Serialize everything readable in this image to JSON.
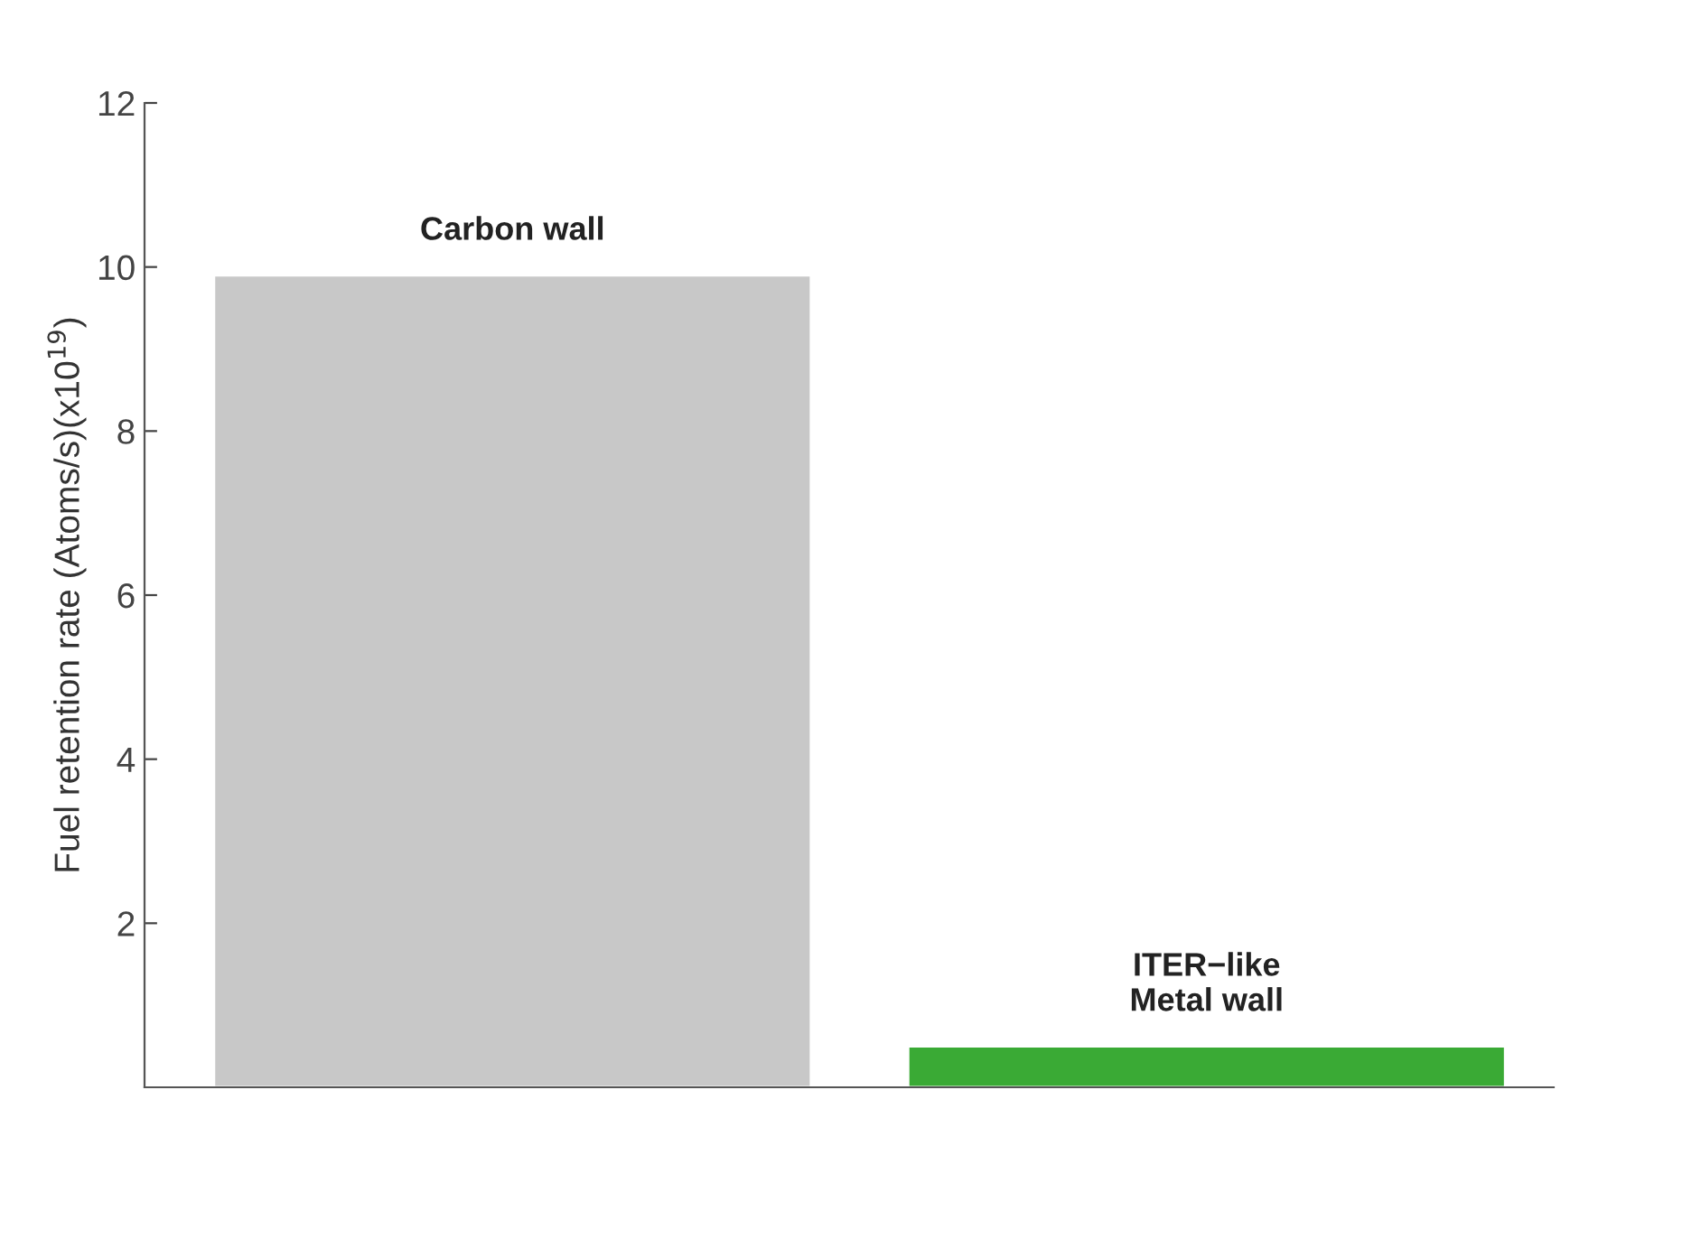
{
  "chart_data": {
    "type": "bar",
    "ylabel": "Fuel retention rate (Atoms/s)(x10$^{19}$)",
    "categories": [
      "Carbon wall",
      "ITER−like\nMetal wall"
    ],
    "values": [
      9.9,
      0.5
    ],
    "colors": [
      "#c8c8c8",
      "#3aaa35"
    ],
    "ylim": [
      0,
      12
    ],
    "yticks": [
      2,
      4,
      6,
      8,
      10,
      12
    ],
    "grid": false,
    "legend": false
  }
}
